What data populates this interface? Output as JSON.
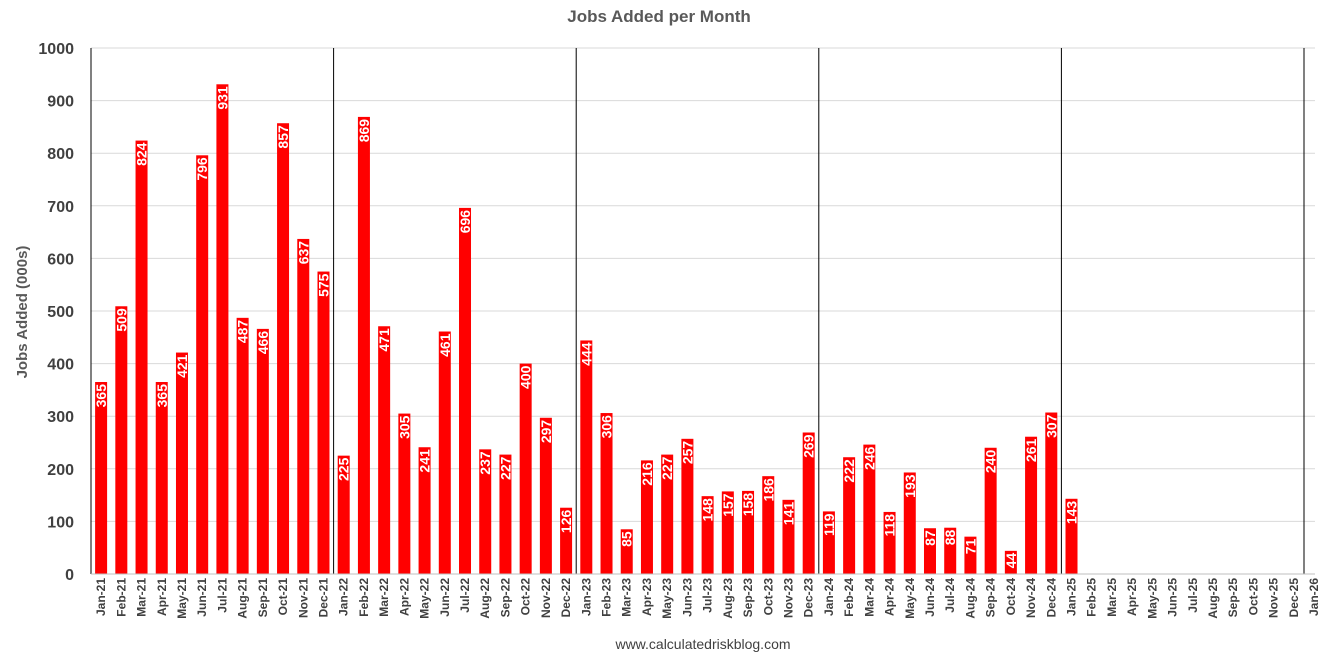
{
  "chart_data": {
    "type": "bar",
    "title": "Jobs Added per Month",
    "ylabel": "Jobs Added (000s)",
    "source": "www.calculatedriskblog.com",
    "ylim": [
      0,
      1000
    ],
    "yticks": [
      0,
      100,
      200,
      300,
      400,
      500,
      600,
      700,
      800,
      900,
      1000
    ],
    "grid": true,
    "bar_color": "#ff0000",
    "year_separators_after": [
      "Dec-21",
      "Dec-22",
      "Dec-23",
      "Dec-24",
      "Dec-25"
    ],
    "categories": [
      "Jan-21",
      "Feb-21",
      "Mar-21",
      "Apr-21",
      "May-21",
      "Jun-21",
      "Jul-21",
      "Aug-21",
      "Sep-21",
      "Oct-21",
      "Nov-21",
      "Dec-21",
      "Jan-22",
      "Feb-22",
      "Mar-22",
      "Apr-22",
      "May-22",
      "Jun-22",
      "Jul-22",
      "Aug-22",
      "Sep-22",
      "Oct-22",
      "Nov-22",
      "Dec-22",
      "Jan-23",
      "Feb-23",
      "Mar-23",
      "Apr-23",
      "May-23",
      "Jun-23",
      "Jul-23",
      "Aug-23",
      "Sep-23",
      "Oct-23",
      "Nov-23",
      "Dec-23",
      "Jan-24",
      "Feb-24",
      "Mar-24",
      "Apr-24",
      "May-24",
      "Jun-24",
      "Jul-24",
      "Aug-24",
      "Sep-24",
      "Oct-24",
      "Nov-24",
      "Dec-24",
      "Jan-25",
      "Feb-25",
      "Mar-25",
      "Apr-25",
      "May-25",
      "Jun-25",
      "Jul-25",
      "Aug-25",
      "Sep-25",
      "Oct-25",
      "Nov-25",
      "Dec-25",
      "Jan-26"
    ],
    "values": [
      365,
      509,
      824,
      365,
      421,
      796,
      931,
      487,
      466,
      857,
      637,
      575,
      225,
      869,
      471,
      305,
      241,
      461,
      696,
      237,
      227,
      400,
      297,
      126,
      444,
      306,
      85,
      216,
      227,
      257,
      148,
      157,
      158,
      186,
      141,
      269,
      119,
      222,
      246,
      118,
      193,
      87,
      88,
      71,
      240,
      44,
      261,
      307,
      143,
      null,
      null,
      null,
      null,
      null,
      null,
      null,
      null,
      null,
      null,
      null,
      null
    ]
  }
}
